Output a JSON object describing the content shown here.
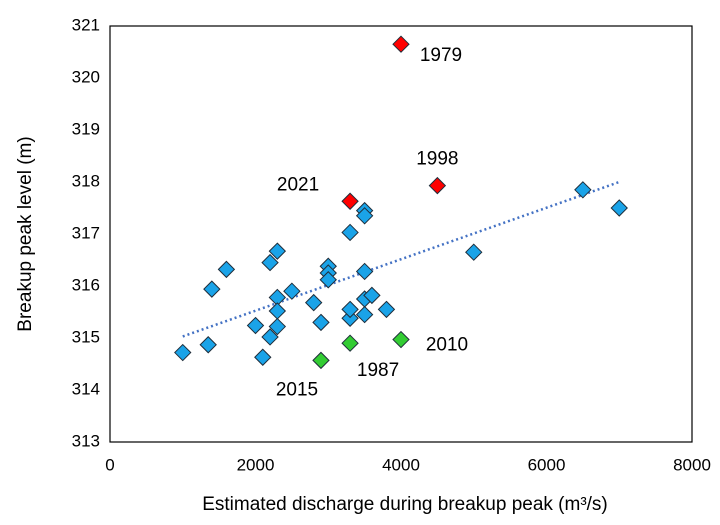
{
  "chart_data": {
    "type": "scatter",
    "x_label": "Estimated discharge during breakup peak (m³/s)",
    "y_label": "Breakup peak level (m)",
    "xlim": [
      0,
      8000
    ],
    "xticks": [
      0,
      2000,
      4000,
      6000,
      8000
    ],
    "ylim": [
      313,
      321
    ],
    "yticks": [
      313,
      314,
      315,
      316,
      317,
      318,
      319,
      320,
      321
    ],
    "grid": false,
    "series": [
      {
        "color": "#1aa3e8",
        "x": [
          1000,
          1350,
          1400,
          1600,
          2000,
          2100,
          2200,
          2200,
          2300,
          2300,
          2300,
          2300,
          2500,
          2800,
          2900,
          3000,
          3000,
          3000,
          3300,
          3300,
          3300,
          3500,
          3500,
          3500,
          3500,
          3500,
          3600,
          3800,
          5000,
          6500,
          7000
        ],
        "y": [
          314.72,
          314.87,
          315.94,
          316.32,
          315.24,
          314.63,
          315.02,
          316.45,
          316.67,
          315.78,
          315.52,
          315.22,
          315.9,
          315.68,
          315.3,
          316.38,
          316.25,
          316.12,
          317.03,
          315.38,
          315.55,
          317.45,
          317.35,
          316.28,
          315.75,
          315.45,
          315.82,
          315.55,
          316.65,
          317.85,
          317.5
        ]
      },
      {
        "color": "#ff0000",
        "x": [
          3300,
          4000,
          4500
        ],
        "y": [
          317.63,
          320.65,
          317.93
        ],
        "labels": [
          "2021",
          "1979",
          "1998"
        ]
      },
      {
        "color": "#33cc33",
        "x": [
          2900,
          3300,
          4000
        ],
        "y": [
          314.57,
          314.9,
          314.97
        ],
        "labels": [
          "2015",
          "1987",
          "2010"
        ]
      }
    ],
    "trendline": {
      "color": "#4472c4",
      "x": [
        1000,
        7000
      ],
      "y": [
        315.03,
        318.0
      ]
    }
  }
}
